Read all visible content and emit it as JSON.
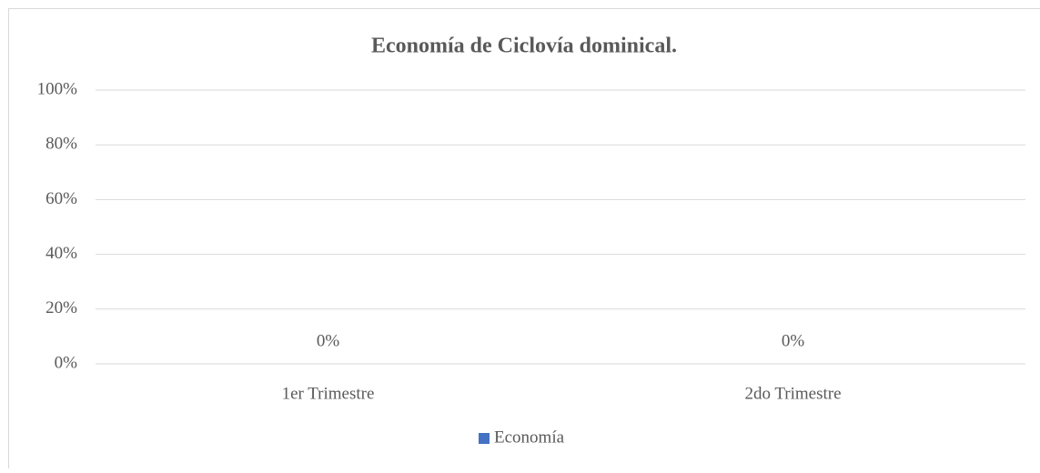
{
  "chart_data": {
    "type": "bar",
    "title": "Economía de Ciclovía dominical.",
    "categories": [
      "1er Trimestre",
      "2do Trimestre"
    ],
    "series": [
      {
        "name": "Economía",
        "color": "#4472c4",
        "values": [
          0,
          0
        ],
        "value_labels": [
          "0%",
          "0%"
        ]
      }
    ],
    "ylim": [
      0,
      100
    ],
    "yticks": [
      {
        "value": 0,
        "label": "0%"
      },
      {
        "value": 20,
        "label": "20%"
      },
      {
        "value": 40,
        "label": "40%"
      },
      {
        "value": 60,
        "label": "60%"
      },
      {
        "value": 80,
        "label": "80%"
      },
      {
        "value": 100,
        "label": "100%"
      }
    ],
    "grid": true,
    "legend": "bottom"
  }
}
